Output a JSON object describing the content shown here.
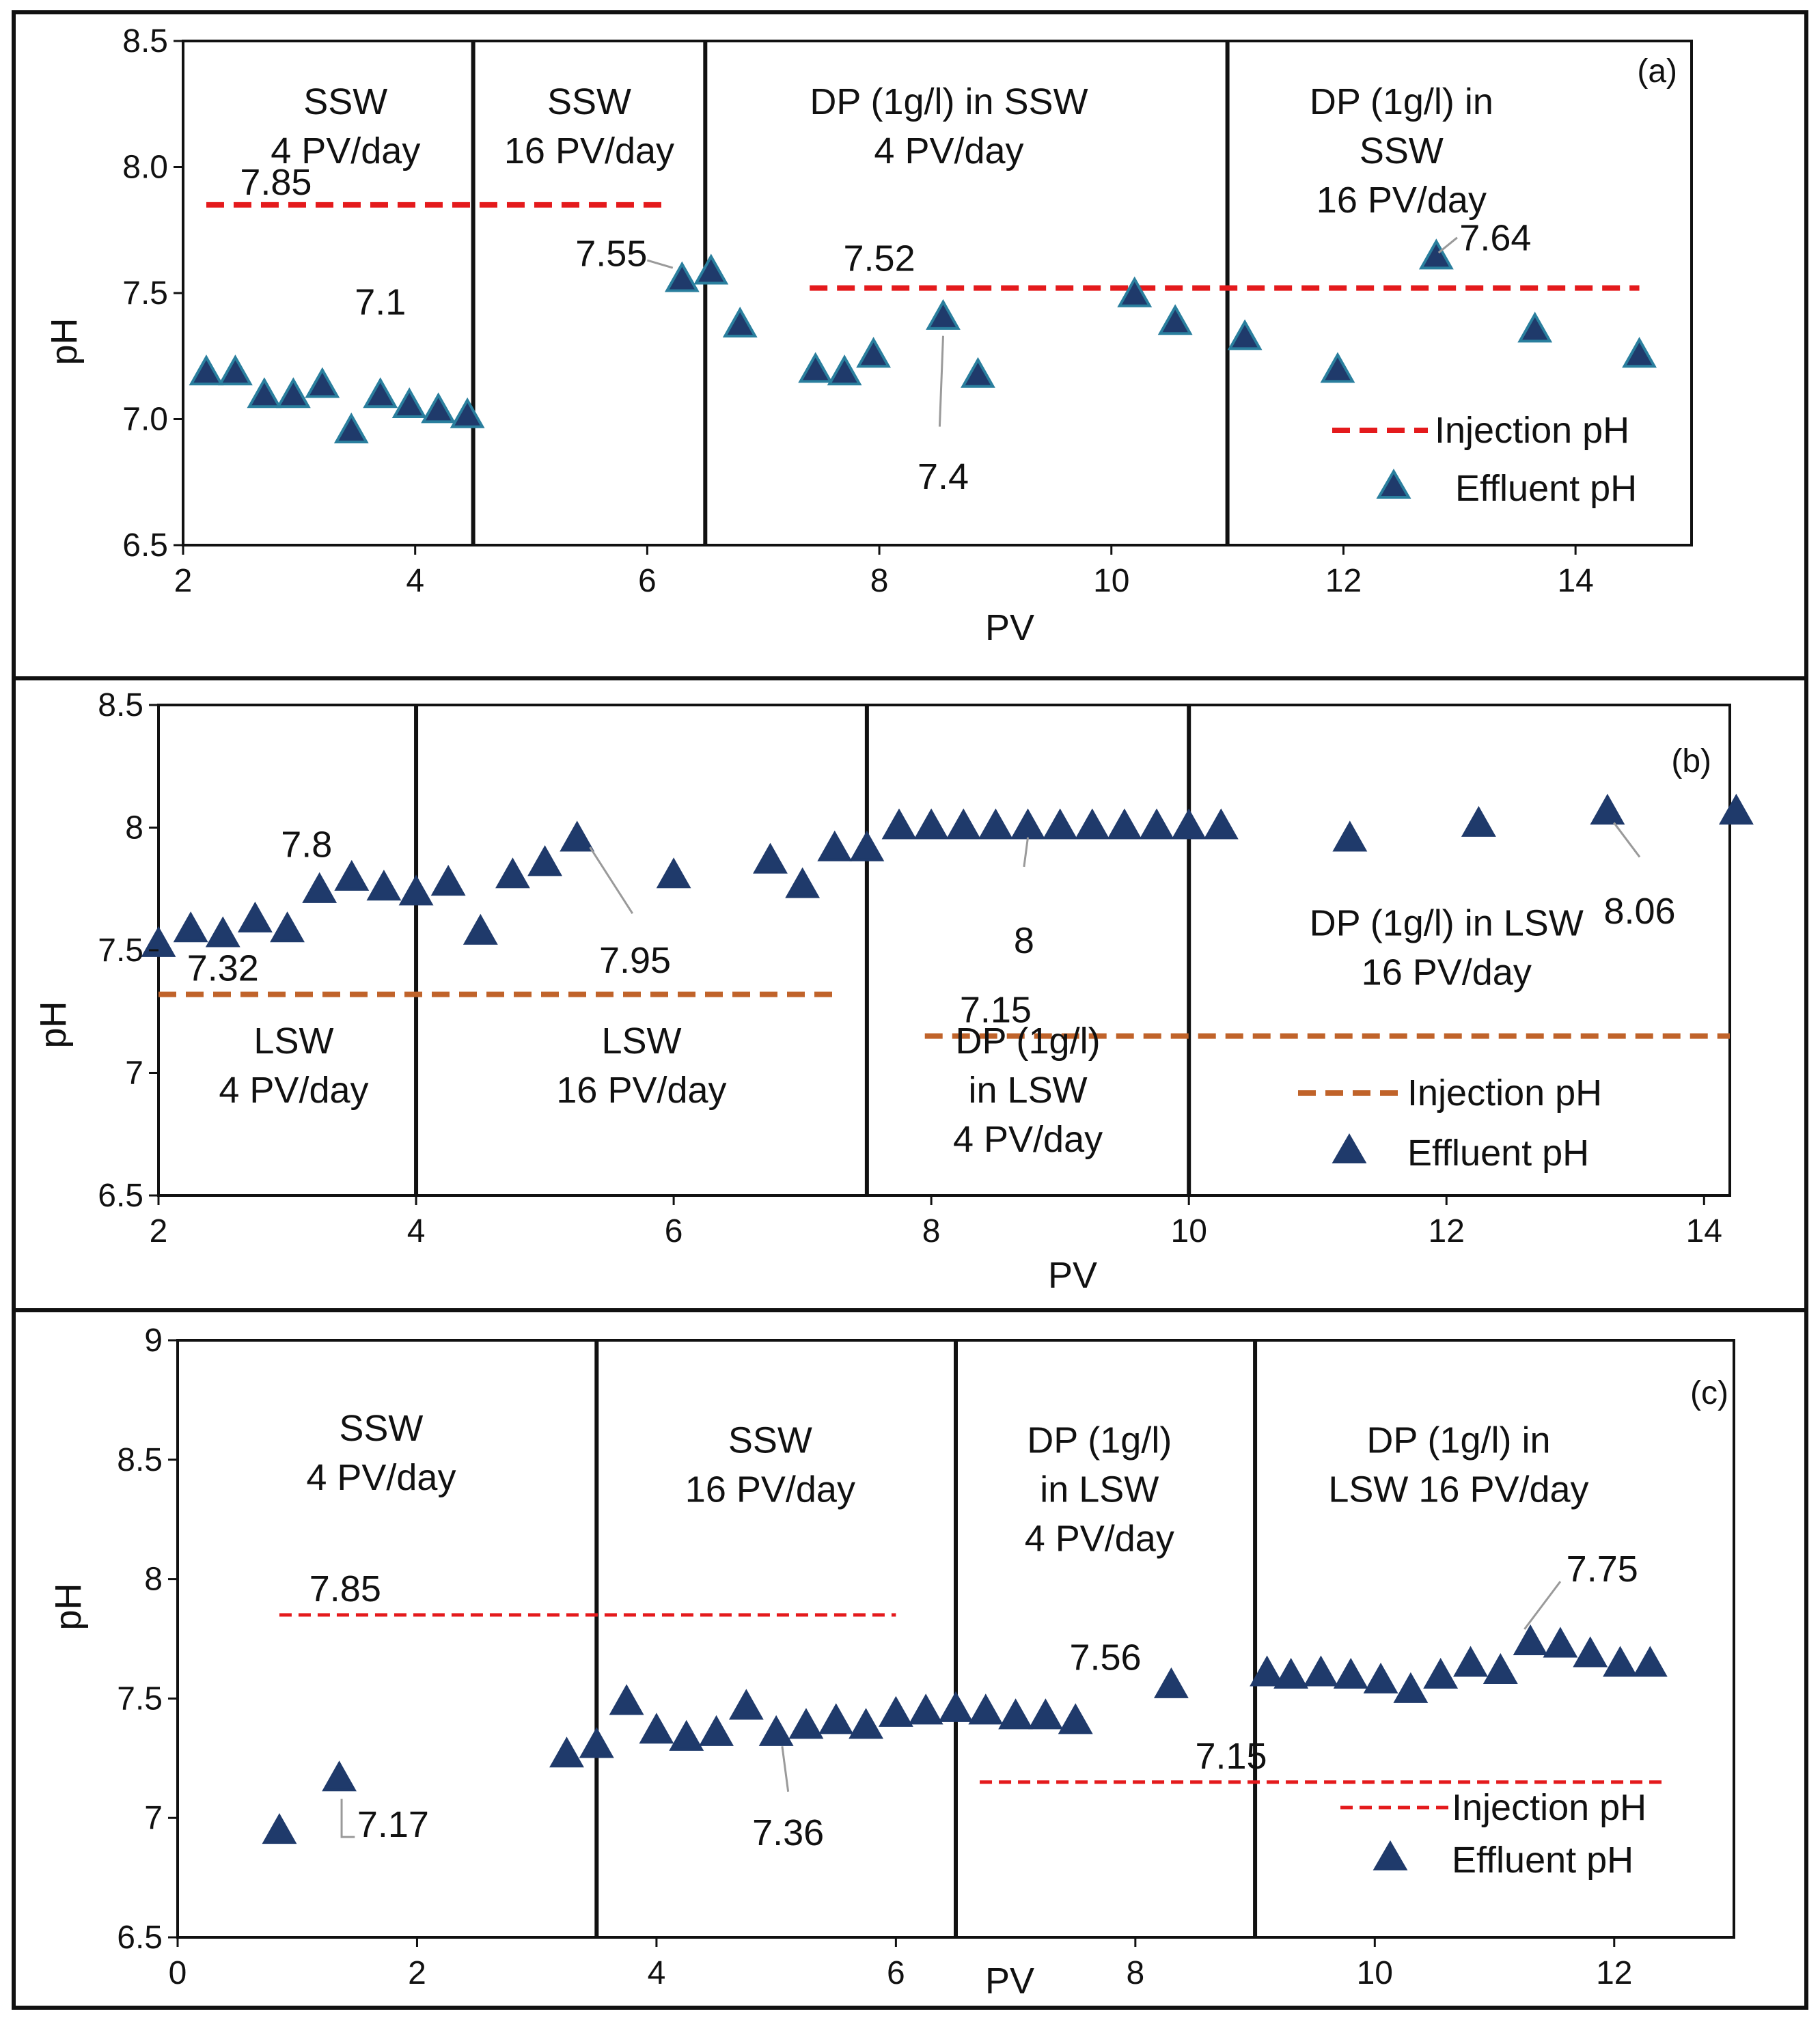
{
  "chart_data": [
    {
      "type": "scatter",
      "panel_label": "(a)",
      "xlabel": "PV",
      "ylabel": "pH",
      "xlim": [
        2,
        15
      ],
      "ylim": [
        6.5,
        8.5
      ],
      "x_ticks": [
        2,
        4,
        6,
        8,
        10,
        12,
        14
      ],
      "x_tick_labels": [
        "2",
        "4",
        "6",
        "8",
        "10",
        "12",
        "14"
      ],
      "y_ticks": [
        6.5,
        7.0,
        7.5,
        8.0,
        8.5
      ],
      "y_tick_labels": [
        "6.5",
        "7.0",
        "7.5",
        "8.0",
        "8.5"
      ],
      "dividers": [
        4.5,
        6.5,
        11.0
      ],
      "injection_color": "#e41a1c",
      "injection_dash": "thick",
      "marker_stroke": "#2a7f9e",
      "regions": [
        {
          "x": 3.4,
          "y_top": 8.21,
          "lines": [
            "SSW",
            "4 PV/day"
          ]
        },
        {
          "x": 5.5,
          "y_top": 8.21,
          "lines": [
            "SSW",
            "16 PV/day"
          ]
        },
        {
          "x": 8.6,
          "y_top": 8.21,
          "lines": [
            "DP (1g/l) in SSW",
            "4 PV/day"
          ]
        },
        {
          "x": 12.5,
          "y_top": 8.21,
          "lines": [
            "DP (1g/l) in",
            "SSW",
            "16 PV/day"
          ]
        }
      ],
      "series": [
        {
          "name": "Injection pH",
          "kind": "line",
          "segments": [
            {
              "x": [
                2.2,
                6.2
              ],
              "y": 7.85
            },
            {
              "x": [
                7.4,
                14.55
              ],
              "y": 7.52
            }
          ]
        },
        {
          "name": "Effluent pH",
          "kind": "scatter",
          "x": [
            2.2,
            2.45,
            2.7,
            2.95,
            3.2,
            3.45,
            3.7,
            3.95,
            4.2,
            4.45,
            6.3,
            6.55,
            6.8,
            7.45,
            7.7,
            7.95,
            8.55,
            8.85,
            10.2,
            10.55,
            11.15,
            11.95,
            12.8,
            13.65,
            14.55
          ],
          "y": [
            7.18,
            7.18,
            7.09,
            7.09,
            7.13,
            6.95,
            7.09,
            7.05,
            7.03,
            7.01,
            7.55,
            7.58,
            7.37,
            7.19,
            7.18,
            7.25,
            7.4,
            7.17,
            7.49,
            7.38,
            7.32,
            7.19,
            7.64,
            7.35,
            7.25
          ]
        }
      ],
      "annotations": [
        {
          "text": "7.85",
          "x": 2.8,
          "y": 7.85,
          "anchor": "middle",
          "dy": -15
        },
        {
          "text": "7.1",
          "x": 3.7,
          "y": 7.09,
          "anchor": "middle",
          "dy": -120
        },
        {
          "text": "7.55",
          "x": 6.0,
          "y": 7.62,
          "anchor": "end",
          "dy": 5,
          "leader": [
            [
              6.0,
              7.63
            ],
            [
              6.22,
              7.6
            ]
          ]
        },
        {
          "text": "7.52",
          "x": 8.0,
          "y": 7.52,
          "anchor": "middle",
          "dy": -25
        },
        {
          "text": "7.4",
          "x": 8.55,
          "y": 6.83,
          "anchor": "middle",
          "dy": 40,
          "leader": [
            [
              8.55,
              7.33
            ],
            [
              8.52,
              6.97
            ]
          ]
        },
        {
          "text": "7.64",
          "x": 13.0,
          "y": 7.67,
          "anchor": "start",
          "dy": 0,
          "leader": [
            [
              12.98,
              7.72
            ],
            [
              12.82,
              7.66
            ]
          ]
        }
      ],
      "legend": {
        "position": "bottom-right",
        "injection": "Injection pH",
        "effluent": "Effluent pH"
      }
    },
    {
      "type": "scatter",
      "panel_label": "(b)",
      "xlabel": "PV",
      "ylabel": "pH",
      "xlim": [
        2,
        14.2
      ],
      "ylim": [
        6.5,
        8.5
      ],
      "x_ticks": [
        2,
        4,
        6,
        8,
        10,
        12,
        14
      ],
      "x_tick_labels": [
        "2",
        "4",
        "6",
        "8",
        "10",
        "12",
        "14"
      ],
      "y_ticks": [
        6.5,
        7,
        7.5,
        8,
        8.5
      ],
      "y_tick_labels": [
        "6.5",
        "7",
        "7.5",
        "8",
        "8.5"
      ],
      "dividers": [
        4.0,
        7.5,
        10.0
      ],
      "injection_color": "#c0632a",
      "injection_dash": "thick",
      "marker_stroke": "#1f3a6b",
      "regions": [
        {
          "x": 3.05,
          "y_top": 7.08,
          "lines": [
            "LSW",
            "4 PV/day"
          ]
        },
        {
          "x": 5.75,
          "y_top": 7.08,
          "lines": [
            "LSW",
            "16 PV/day"
          ]
        },
        {
          "x": 8.75,
          "y_top": 7.08,
          "lines": [
            "DP (1g/l)",
            "in LSW",
            "4 PV/day"
          ]
        },
        {
          "x": 12.0,
          "y_top": 7.56,
          "lines": [
            "DP (1g/l) in LSW",
            "16 PV/day"
          ]
        }
      ],
      "series": [
        {
          "name": "Injection pH",
          "kind": "line",
          "segments": [
            {
              "x": [
                2.0,
                7.25
              ],
              "y": 7.32
            },
            {
              "x": [
                7.95,
                14.2
              ],
              "y": 7.15
            }
          ]
        },
        {
          "name": "Effluent pH",
          "kind": "scatter",
          "x": [
            2.0,
            2.25,
            2.5,
            2.75,
            3.0,
            3.25,
            3.5,
            3.75,
            4.0,
            4.25,
            4.5,
            4.75,
            5.0,
            5.25,
            6.0,
            6.75,
            7.0,
            7.25,
            7.5,
            7.75,
            8.0,
            8.25,
            8.5,
            8.75,
            9.0,
            9.25,
            9.5,
            9.75,
            10.0,
            10.25,
            11.25,
            12.25,
            13.25,
            14.25
          ],
          "y": [
            7.52,
            7.58,
            7.56,
            7.62,
            7.58,
            7.74,
            7.79,
            7.75,
            7.73,
            7.77,
            7.57,
            7.8,
            7.85,
            7.95,
            7.8,
            7.86,
            7.76,
            7.91,
            7.91,
            8.0,
            8.0,
            8.0,
            8.0,
            8.0,
            8.0,
            8.0,
            8.0,
            8.0,
            8.0,
            8.0,
            7.95,
            8.01,
            8.06,
            8.06
          ]
        }
      ],
      "annotations": [
        {
          "text": "7.8",
          "x": 3.15,
          "y": 7.88,
          "anchor": "middle",
          "dy": 0
        },
        {
          "text": "7.32",
          "x": 2.5,
          "y": 7.32,
          "anchor": "middle",
          "dy": -20
        },
        {
          "text": "7.95",
          "x": 5.7,
          "y": 7.52,
          "anchor": "middle",
          "dy": 40,
          "leader": [
            [
              5.35,
              7.92
            ],
            [
              5.68,
              7.65
            ]
          ]
        },
        {
          "text": "8",
          "x": 8.72,
          "y": 7.6,
          "anchor": "middle",
          "dy": 40,
          "leader": [
            [
              8.75,
              7.96
            ],
            [
              8.72,
              7.84
            ]
          ]
        },
        {
          "text": "7.15",
          "x": 8.5,
          "y": 7.15,
          "anchor": "middle",
          "dy": -20
        },
        {
          "text": "8.06",
          "x": 13.5,
          "y": 7.72,
          "anchor": "middle",
          "dy": 40,
          "leader": [
            [
              13.3,
              8.02
            ],
            [
              13.5,
              7.88
            ]
          ]
        }
      ],
      "legend": {
        "position": "bottom-right",
        "injection": "Injection pH",
        "effluent": "Effluent pH"
      }
    },
    {
      "type": "scatter",
      "panel_label": "(c)",
      "xlabel": "PV",
      "ylabel": "pH",
      "xlim": [
        0,
        13
      ],
      "ylim": [
        6.5,
        9
      ],
      "x_ticks": [
        0,
        2,
        4,
        6,
        8,
        10,
        12
      ],
      "x_tick_labels": [
        "0",
        "2",
        "4",
        "6",
        "8",
        "10",
        "12"
      ],
      "y_ticks": [
        6.5,
        7,
        7.5,
        8,
        8.5,
        9
      ],
      "y_tick_labels": [
        "6.5",
        "7",
        "7.5",
        "8",
        "8.5",
        "9"
      ],
      "dividers": [
        3.5,
        6.5,
        9.0
      ],
      "injection_color": "#e41a1c",
      "injection_dash": "thin",
      "marker_stroke": "#1f3a6b",
      "regions": [
        {
          "x": 1.7,
          "y_top": 8.58,
          "lines": [
            "SSW",
            "4 PV/day"
          ]
        },
        {
          "x": 4.95,
          "y_top": 8.53,
          "lines": [
            "SSW",
            "16 PV/day"
          ]
        },
        {
          "x": 7.7,
          "y_top": 8.53,
          "lines": [
            "DP (1g/l)",
            "in LSW",
            "4 PV/day"
          ]
        },
        {
          "x": 10.7,
          "y_top": 8.53,
          "lines": [
            "DP (1g/l) in",
            "LSW 16 PV/day"
          ]
        }
      ],
      "series": [
        {
          "name": "Injection pH",
          "kind": "line",
          "segments": [
            {
              "x": [
                0.85,
                6.0
              ],
              "y": 7.85
            },
            {
              "x": [
                6.7,
                12.4
              ],
              "y": 7.15
            }
          ]
        },
        {
          "name": "Effluent pH",
          "kind": "scatter",
          "x": [
            0.85,
            1.35,
            3.25,
            3.5,
            3.75,
            4.0,
            4.25,
            4.5,
            4.75,
            5.0,
            5.25,
            5.5,
            5.75,
            6.0,
            6.25,
            6.5,
            6.75,
            7.0,
            7.25,
            7.5,
            8.3,
            9.1,
            9.3,
            9.55,
            9.8,
            10.05,
            10.3,
            10.55,
            10.8,
            11.05,
            11.3,
            11.55,
            11.8,
            12.05,
            12.3
          ],
          "y": [
            6.94,
            7.16,
            7.26,
            7.3,
            7.48,
            7.36,
            7.33,
            7.35,
            7.46,
            7.35,
            7.38,
            7.4,
            7.38,
            7.43,
            7.44,
            7.45,
            7.44,
            7.42,
            7.42,
            7.4,
            7.55,
            7.6,
            7.59,
            7.6,
            7.59,
            7.57,
            7.53,
            7.59,
            7.64,
            7.61,
            7.73,
            7.72,
            7.68,
            7.64,
            7.64
          ]
        }
      ],
      "annotations": [
        {
          "text": "7.85",
          "x": 1.4,
          "y": 7.85,
          "anchor": "middle",
          "dy": -20
        },
        {
          "text": "7.17",
          "x": 1.5,
          "y": 6.92,
          "anchor": "start",
          "dy": 0,
          "leader": [
            [
              1.37,
              7.08
            ],
            [
              1.37,
              6.92
            ],
            [
              1.48,
              6.92
            ]
          ]
        },
        {
          "text": "7.36",
          "x": 5.1,
          "y": 7.0,
          "anchor": "middle",
          "dy": 40,
          "leader": [
            [
              5.05,
              7.3
            ],
            [
              5.1,
              7.11
            ]
          ]
        },
        {
          "text": "7.56",
          "x": 7.75,
          "y": 7.62,
          "anchor": "middle",
          "dy": 0
        },
        {
          "text": "7.15",
          "x": 8.8,
          "y": 7.15,
          "anchor": "middle",
          "dy": -20
        },
        {
          "text": "7.75",
          "x": 11.6,
          "y": 7.99,
          "anchor": "start",
          "dy": 0,
          "leader": [
            [
              11.25,
              7.79
            ],
            [
              11.55,
              7.99
            ]
          ]
        }
      ],
      "legend": {
        "position": "bottom-right",
        "injection": "Injection pH",
        "effluent": "Effluent pH"
      }
    }
  ]
}
